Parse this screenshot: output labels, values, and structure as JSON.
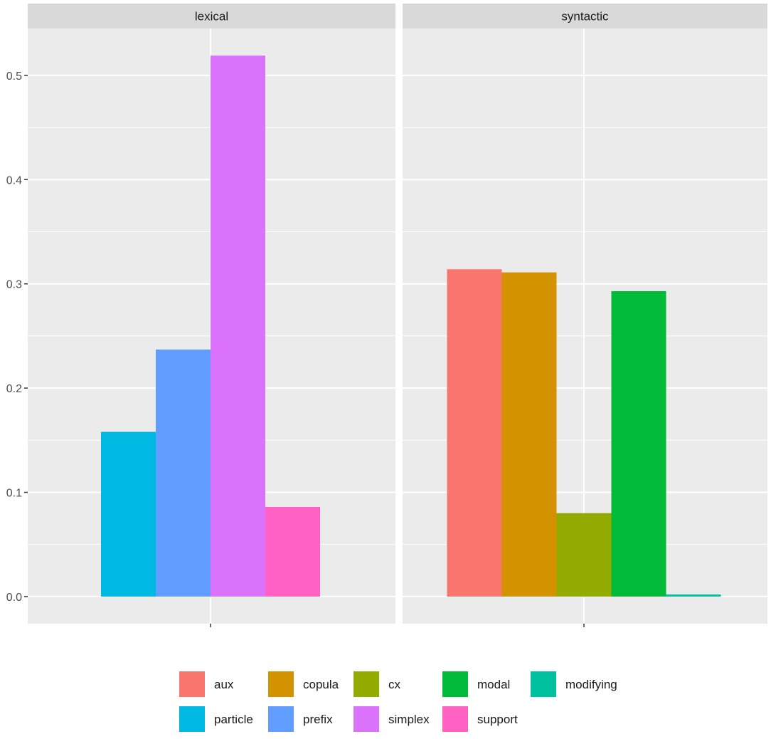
{
  "chart_data": {
    "type": "bar",
    "title": "",
    "xlabel": "",
    "ylabel": "",
    "ylim": [
      -0.026,
      0.545
    ],
    "y_ticks": [
      0.0,
      0.1,
      0.2,
      0.3,
      0.4,
      0.5
    ],
    "y_tick_labels": [
      "0.0",
      "0.1",
      "0.2",
      "0.3",
      "0.4",
      "0.5"
    ],
    "grid": true,
    "legend_position": "bottom",
    "panels": [
      {
        "label": "lexical",
        "series": [
          {
            "name": "particle",
            "value": 0.158
          },
          {
            "name": "prefix",
            "value": 0.237
          },
          {
            "name": "simplex",
            "value": 0.519
          },
          {
            "name": "support",
            "value": 0.086
          }
        ]
      },
      {
        "label": "syntactic",
        "series": [
          {
            "name": "aux",
            "value": 0.314
          },
          {
            "name": "copula",
            "value": 0.311
          },
          {
            "name": "cx",
            "value": 0.08
          },
          {
            "name": "modal",
            "value": 0.293
          },
          {
            "name": "modifying",
            "value": 0.002
          }
        ]
      }
    ],
    "legend": [
      {
        "label": "aux",
        "color": "#F8766D"
      },
      {
        "label": "copula",
        "color": "#D39200"
      },
      {
        "label": "cx",
        "color": "#93AA00"
      },
      {
        "label": "modal",
        "color": "#00BA38"
      },
      {
        "label": "modifying",
        "color": "#00C19F"
      },
      {
        "label": "particle",
        "color": "#00B9E3"
      },
      {
        "label": "prefix",
        "color": "#619CFF"
      },
      {
        "label": "simplex",
        "color": "#DB72FB"
      },
      {
        "label": "support",
        "color": "#FF61C3"
      }
    ]
  }
}
